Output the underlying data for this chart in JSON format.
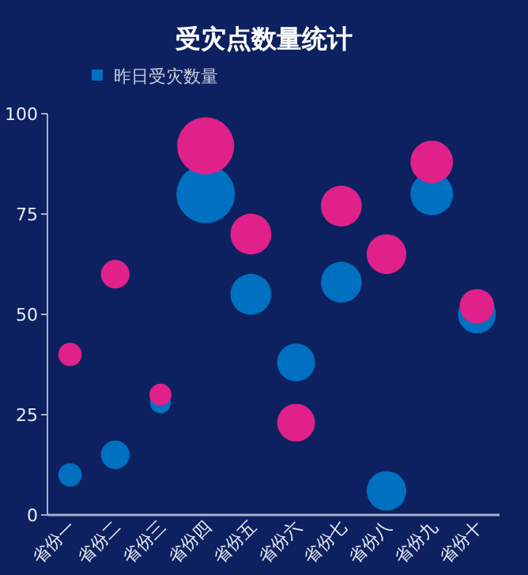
{
  "chart_data": {
    "type": "bubble",
    "title": "受灾点数量统计",
    "categories": [
      "省份一",
      "省份二",
      "省份三",
      "省份四",
      "省份五",
      "省份六",
      "省份七",
      "省份八",
      "省份九",
      "省份十"
    ],
    "series": [
      {
        "name": "昨日受灾数量",
        "color": "#0070c0",
        "values": [
          10,
          15,
          28,
          80,
          55,
          38,
          58,
          6,
          80,
          50
        ],
        "sizes": [
          0.16,
          0.24,
          0.13,
          1,
          0.49,
          0.42,
          0.49,
          0.46,
          0.53,
          0.42
        ]
      },
      {
        "color": "#e0218a",
        "values": [
          40,
          60,
          30,
          92,
          70,
          23,
          77,
          65,
          88,
          52
        ],
        "sizes": [
          0.16,
          0.24,
          0.14,
          0.95,
          0.49,
          0.42,
          0.49,
          0.46,
          0.53,
          0.35
        ]
      }
    ],
    "ylim": [
      0,
      100
    ],
    "yticks": [
      0,
      25,
      50,
      75,
      100
    ],
    "grid": false,
    "legend": "top left"
  }
}
